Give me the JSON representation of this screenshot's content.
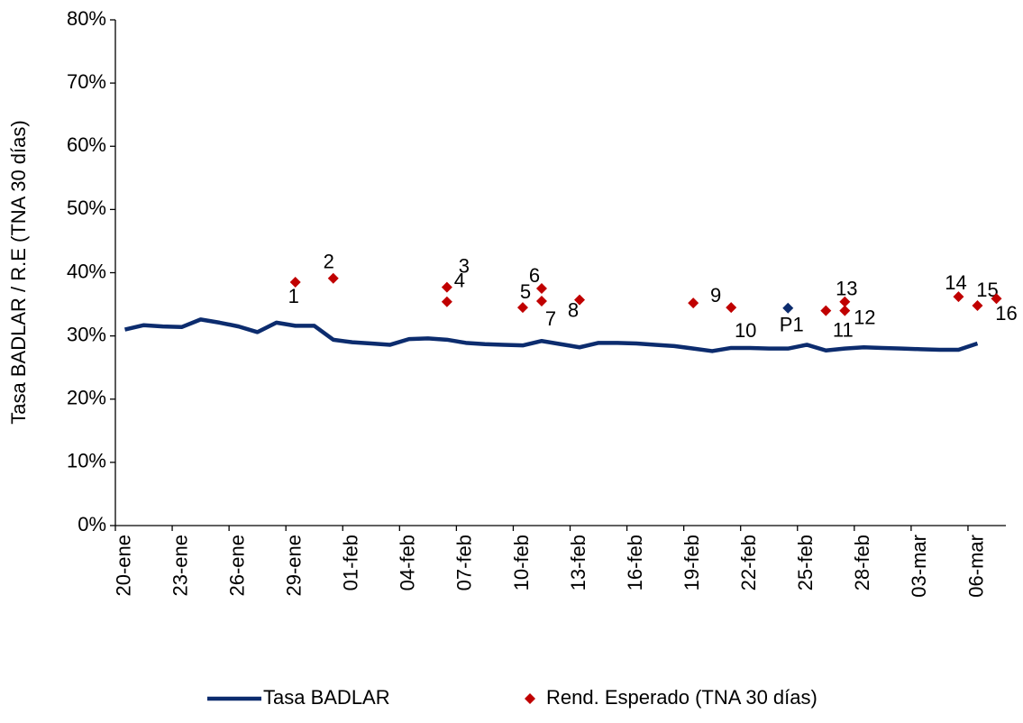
{
  "chart_data": {
    "type": "line-scatter",
    "y_axis_label": "Tasa BADLAR / R.E (TNA 30 días)",
    "ylim": [
      0,
      80
    ],
    "yticks": [
      {
        "value": 0,
        "label": "0%"
      },
      {
        "value": 10,
        "label": "10%"
      },
      {
        "value": 20,
        "label": "20%"
      },
      {
        "value": 30,
        "label": "30%"
      },
      {
        "value": 40,
        "label": "40%"
      },
      {
        "value": 50,
        "label": "50%"
      },
      {
        "value": 60,
        "label": "60%"
      },
      {
        "value": 70,
        "label": "70%"
      },
      {
        "value": 80,
        "label": "80%"
      }
    ],
    "x": [
      "20-ene",
      "21-ene",
      "22-ene",
      "23-ene",
      "24-ene",
      "25-ene",
      "26-ene",
      "27-ene",
      "28-ene",
      "29-ene",
      "30-ene",
      "31-ene",
      "01-feb",
      "02-feb",
      "03-feb",
      "04-feb",
      "05-feb",
      "06-feb",
      "07-feb",
      "08-feb",
      "09-feb",
      "10-feb",
      "11-feb",
      "12-feb",
      "13-feb",
      "14-feb",
      "15-feb",
      "16-feb",
      "17-feb",
      "18-feb",
      "19-feb",
      "20-feb",
      "21-feb",
      "22-feb",
      "23-feb",
      "24-feb",
      "25-feb",
      "26-feb",
      "27-feb",
      "28-feb",
      "01-mar",
      "02-mar",
      "03-mar",
      "04-mar",
      "05-mar",
      "06-mar",
      "07-mar"
    ],
    "xticks": [
      "20-ene",
      "23-ene",
      "26-ene",
      "29-ene",
      "01-feb",
      "04-feb",
      "07-feb",
      "10-feb",
      "13-feb",
      "16-feb",
      "19-feb",
      "22-feb",
      "25-feb",
      "28-feb",
      "03-mar",
      "06-mar"
    ],
    "series": [
      {
        "name": "Tasa BADLAR",
        "type": "line",
        "color": "#0c2c6e",
        "values": [
          31.0,
          31.7,
          31.5,
          31.4,
          32.6,
          32.1,
          31.5,
          30.6,
          32.1,
          31.6,
          31.6,
          29.4,
          29.0,
          28.8,
          28.6,
          29.5,
          29.6,
          29.4,
          28.9,
          28.7,
          28.6,
          28.5,
          29.2,
          28.7,
          28.2,
          28.9,
          28.9,
          28.8,
          28.6,
          28.4,
          28.0,
          27.6,
          28.1,
          28.1,
          28.0,
          28.0,
          28.6,
          27.7,
          28.0,
          28.2,
          28.1,
          28.0,
          27.9,
          27.8,
          27.8,
          28.8,
          null
        ]
      },
      {
        "name": "Rend. Esperado (TNA 30 días)",
        "type": "scatter",
        "color": "#c00000",
        "x": [
          "29-ene",
          "31-ene",
          "06-feb",
          "06-feb",
          "10-feb",
          "11-feb",
          "11-feb",
          "13-feb",
          "19-feb",
          "21-feb",
          "24-feb",
          "26-feb",
          "27-feb",
          "27-feb",
          "05-mar",
          "06-mar",
          "07-mar"
        ],
        "values": [
          38.5,
          39.1,
          37.7,
          35.4,
          34.5,
          37.5,
          35.5,
          35.7,
          35.2,
          34.5,
          34.4,
          34.0,
          34.0,
          35.4,
          36.2,
          34.8,
          35.9
        ],
        "point_labels": [
          "1",
          "2",
          "3",
          "4",
          "5",
          "6",
          "7",
          "8",
          "9",
          "10",
          "P1",
          "11",
          "12",
          "13",
          "14",
          "15",
          "16"
        ],
        "point_colors": [
          "#c00000",
          "#c00000",
          "#c00000",
          "#c00000",
          "#c00000",
          "#c00000",
          "#c00000",
          "#c00000",
          "#c00000",
          "#c00000",
          "#0c2c6e",
          "#c00000",
          "#c00000",
          "#c00000",
          "#c00000",
          "#c00000",
          "#c00000"
        ]
      }
    ]
  }
}
